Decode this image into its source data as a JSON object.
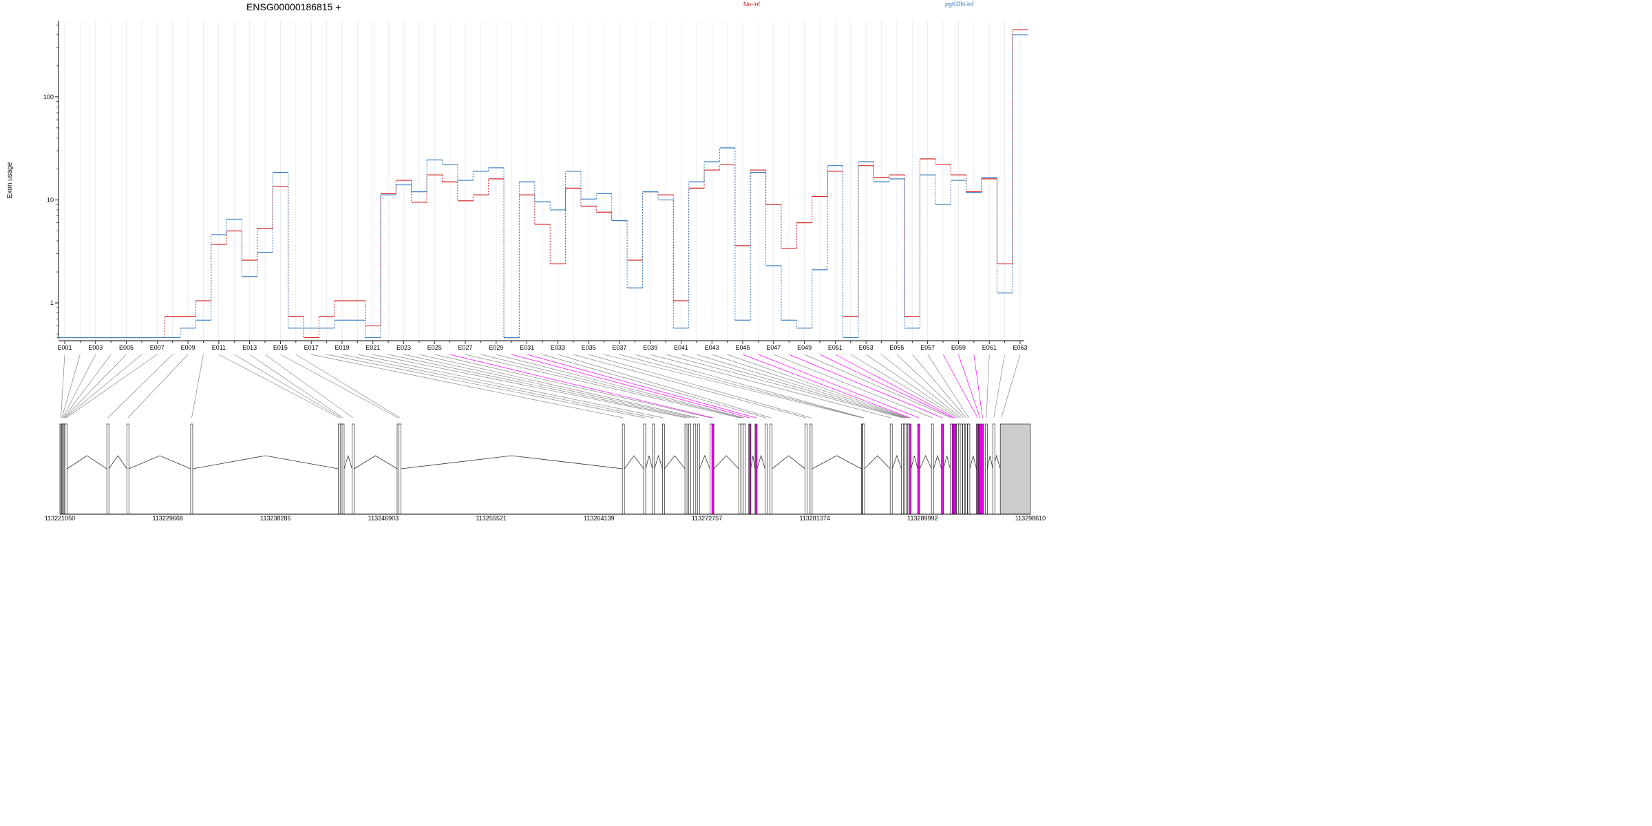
{
  "chart_data": {
    "type": "line",
    "title": "ENSG00000186815 +",
    "xlabel": "",
    "ylabel": "Exon usage",
    "y_scale": "log",
    "ylim": [
      0.45,
      550
    ],
    "y_ticks": [
      1,
      10,
      100
    ],
    "grid": "vertical",
    "legend_position": "top",
    "colors": {
      "No-inf": "#d62728",
      "pgKDN-inf": "#3a7fc0",
      "highlight": "#ff00ff",
      "connector": "#888888",
      "utr": "#cccccc"
    },
    "categories": [
      "E001",
      "E002",
      "E003",
      "E004",
      "E005",
      "E006",
      "E007",
      "E008",
      "E009",
      "E010",
      "E011",
      "E012",
      "E013",
      "E014",
      "E015",
      "E016",
      "E017",
      "E018",
      "E019",
      "E020",
      "E021",
      "E022",
      "E023",
      "E024",
      "E025",
      "E026",
      "E027",
      "E028",
      "E029",
      "E030",
      "E031",
      "E032",
      "E033",
      "E034",
      "E035",
      "E036",
      "E037",
      "E038",
      "E039",
      "E040",
      "E041",
      "E042",
      "E043",
      "E044",
      "E045",
      "E046",
      "E047",
      "E048",
      "E049",
      "E050",
      "E051",
      "E052",
      "E053",
      "E054",
      "E055",
      "E056",
      "E057",
      "E058",
      "E059",
      "E060",
      "E061",
      "E062",
      "E063"
    ],
    "tick_labels": [
      "E001",
      "E003",
      "E005",
      "E007",
      "E009",
      "E011",
      "E013",
      "E015",
      "E017",
      "E019",
      "E021",
      "E023",
      "E025",
      "E027",
      "E029",
      "E031",
      "E033",
      "E035",
      "E037",
      "E039",
      "E041",
      "E043",
      "E045",
      "E047",
      "E049",
      "E051",
      "E053",
      "E055",
      "E057",
      "E059",
      "E061",
      "E063"
    ],
    "series": [
      {
        "name": "No-inf",
        "values": [
          0.46,
          0.46,
          0.46,
          0.46,
          0.46,
          0.46,
          0.46,
          0.74,
          0.74,
          1.05,
          3.7,
          5.0,
          2.6,
          5.3,
          13.5,
          0.74,
          0.46,
          0.74,
          1.05,
          1.05,
          0.6,
          11.5,
          15.5,
          9.5,
          17.5,
          15.0,
          9.8,
          11.2,
          16.0,
          0.46,
          11.2,
          5.8,
          2.4,
          13.0,
          8.7,
          7.6,
          6.3,
          2.6,
          12.0,
          11.2,
          1.05,
          13.0,
          19.5,
          22.0,
          3.6,
          19.5,
          9.0,
          3.4,
          6.0,
          10.8,
          19.0,
          0.74,
          21.5,
          16.5,
          17.5,
          0.74,
          25.0,
          22.0,
          17.5,
          12.0,
          16.0,
          2.4,
          450
        ]
      },
      {
        "name": "pgKDN-inf",
        "values": [
          0.46,
          0.46,
          0.46,
          0.46,
          0.46,
          0.46,
          0.46,
          0.46,
          0.57,
          0.68,
          4.6,
          6.5,
          1.8,
          3.1,
          18.5,
          0.57,
          0.57,
          0.57,
          0.68,
          0.68,
          0.46,
          11.2,
          14.0,
          12.0,
          24.5,
          22.0,
          15.5,
          19.0,
          20.5,
          0.46,
          15.0,
          9.6,
          8.0,
          19.0,
          10.2,
          11.5,
          6.3,
          1.4,
          12.0,
          10.0,
          0.57,
          15.0,
          23.5,
          32.0,
          0.68,
          18.5,
          2.3,
          0.68,
          0.57,
          2.1,
          21.5,
          0.46,
          23.5,
          15.0,
          16.0,
          0.57,
          17.5,
          9.0,
          15.5,
          11.8,
          16.5,
          1.25,
          400
        ]
      }
    ]
  },
  "gene_model": {
    "coordinate_ticks": [
      "113221050",
      "113229668",
      "113238286",
      "113246903",
      "113255521",
      "113264139",
      "113272757",
      "113281374",
      "113289992",
      "113298610"
    ],
    "coordinate_range": [
      113221050,
      113298610
    ],
    "highlighted_exons": [
      "E026",
      "E030",
      "E031",
      "E045",
      "E046",
      "E048",
      "E050",
      "E051",
      "E058",
      "E059",
      "E060"
    ],
    "exon_coordinates": [
      113221050,
      113221120,
      113221190,
      113221260,
      113221320,
      113221390,
      113221460,
      113224800,
      113226400,
      113231500,
      113243300,
      113243450,
      113243600,
      113244400,
      113248000,
      113248150,
      113266000,
      113267700,
      113268400,
      113269200,
      113271000,
      113271300,
      113271700,
      113272000,
      113273000,
      113273150,
      113275300,
      113275480,
      113275650,
      113276100,
      113276600,
      113277400,
      113277800,
      113280600,
      113281000,
      113285100,
      113285150,
      113285200,
      113287400,
      113288300,
      113288450,
      113288560,
      113288670,
      113288780,
      113288900,
      113289600,
      113290700,
      113291500,
      113292200,
      113292350,
      113292500,
      113292700,
      113292850,
      113293000,
      113293200,
      113293400,
      113293600,
      113294300,
      113294500,
      113294700,
      113295000,
      113295600,
      113296200
    ]
  }
}
